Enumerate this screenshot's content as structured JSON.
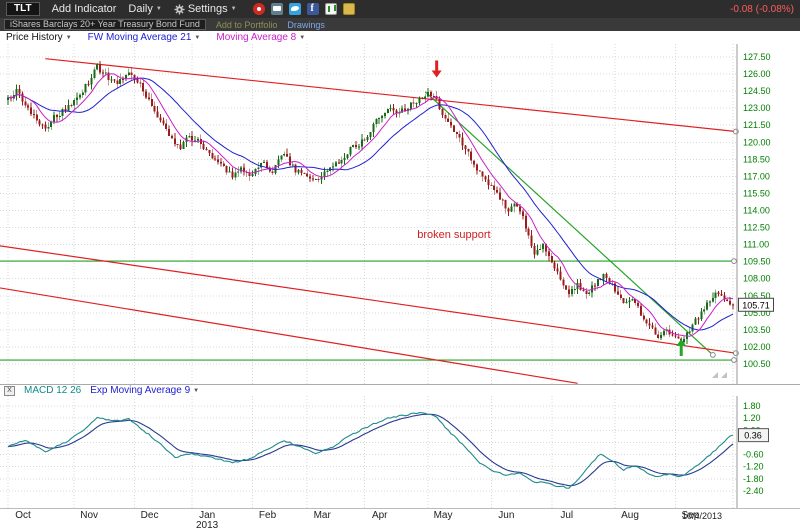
{
  "toolbar": {
    "symbol": "TLT",
    "add_indicator": "Add Indicator",
    "daily": "Daily",
    "settings": "Settings",
    "change": "-0.08 (-0.08%)"
  },
  "subbar": {
    "fund_name": "iShares Barclays 20+ Year Treasury Bond Fund",
    "add_to_portfolio": "Add to Portfolio",
    "drawings": "Drawings"
  },
  "chart_header": {
    "price_history": "Price History",
    "ma21_label": "FW Moving Average 21",
    "ma8_label": "Moving Average 8"
  },
  "macd_header": {
    "close_label": "X",
    "macd_label": "MACD 12 26",
    "signal_label": "Exp Moving Average 9"
  },
  "chart_data": {
    "type": "candlestick",
    "symbol": "TLT",
    "timeframe": "Daily",
    "last_price": 105.71,
    "price_badge": "105.71",
    "date_label": "10/4/2013",
    "year_label": "2013",
    "x_months": [
      "Oct",
      "Nov",
      "Dec",
      "Jan",
      "Feb",
      "Mar",
      "Apr",
      "May",
      "Jun",
      "Jul",
      "Aug",
      "Sep"
    ],
    "month_boundaries": [
      0,
      23,
      44,
      64,
      85,
      104,
      124,
      146,
      168,
      189,
      211,
      232,
      252
    ],
    "price_axis": {
      "min": 100.5,
      "max": 127.5,
      "step": 1.5,
      "labels": [
        "127.50",
        "126.00",
        "124.50",
        "123.00",
        "121.50",
        "120.00",
        "118.50",
        "117.00",
        "115.50",
        "114.00",
        "112.50",
        "111.00",
        "109.50",
        "108.00",
        "106.50",
        "105.00",
        "103.50",
        "102.00",
        "100.50"
      ]
    },
    "colors": {
      "up": "#186a18",
      "down": "#9b1c1c",
      "grid": "#d9d9d9",
      "axis_text": "#008000"
    },
    "price_waypoints": [
      [
        0,
        123.8
      ],
      [
        3,
        124.7
      ],
      [
        6,
        123.4
      ],
      [
        10,
        122.0
      ],
      [
        13,
        121.2
      ],
      [
        16,
        122.2
      ],
      [
        20,
        122.9
      ],
      [
        24,
        123.7
      ],
      [
        28,
        125.3
      ],
      [
        31,
        126.6
      ],
      [
        34,
        125.9
      ],
      [
        38,
        125.2
      ],
      [
        42,
        126.2
      ],
      [
        46,
        125.0
      ],
      [
        50,
        123.2
      ],
      [
        54,
        121.6
      ],
      [
        57,
        120.2
      ],
      [
        60,
        119.6
      ],
      [
        63,
        120.5
      ],
      [
        66,
        120.1
      ],
      [
        70,
        119.0
      ],
      [
        74,
        118.1
      ],
      [
        78,
        116.9
      ],
      [
        81,
        117.6
      ],
      [
        84,
        117.0
      ],
      [
        88,
        118.2
      ],
      [
        92,
        117.5
      ],
      [
        96,
        119.0
      ],
      [
        100,
        117.4
      ],
      [
        104,
        117.1
      ],
      [
        107,
        116.6
      ],
      [
        111,
        117.5
      ],
      [
        115,
        118.3
      ],
      [
        119,
        119.4
      ],
      [
        124,
        120.2
      ],
      [
        128,
        121.9
      ],
      [
        132,
        123.1
      ],
      [
        136,
        122.6
      ],
      [
        140,
        123.3
      ],
      [
        146,
        124.4
      ],
      [
        149,
        123.6
      ],
      [
        152,
        122.0
      ],
      [
        155,
        120.9
      ],
      [
        158,
        119.9
      ],
      [
        161,
        118.6
      ],
      [
        164,
        117.2
      ],
      [
        168,
        116.1
      ],
      [
        171,
        115.2
      ],
      [
        174,
        113.9
      ],
      [
        177,
        114.6
      ],
      [
        180,
        112.6
      ],
      [
        183,
        110.3
      ],
      [
        186,
        111.1
      ],
      [
        189,
        109.5
      ],
      [
        192,
        107.9
      ],
      [
        195,
        106.6
      ],
      [
        198,
        107.4
      ],
      [
        201,
        106.5
      ],
      [
        204,
        107.6
      ],
      [
        207,
        108.3
      ],
      [
        211,
        107.1
      ],
      [
        214,
        105.9
      ],
      [
        217,
        106.4
      ],
      [
        220,
        104.9
      ],
      [
        223,
        103.9
      ],
      [
        226,
        102.9
      ],
      [
        229,
        103.5
      ],
      [
        232,
        102.8
      ],
      [
        234,
        102.2
      ],
      [
        237,
        103.5
      ],
      [
        240,
        104.7
      ],
      [
        243,
        105.8
      ],
      [
        246,
        106.9
      ],
      [
        249,
        106.3
      ],
      [
        252,
        105.71
      ]
    ],
    "overlays": [
      {
        "name": "FW Moving Average 21",
        "period": 21,
        "color": "#2020d0"
      },
      {
        "name": "Moving Average 8",
        "period": 8,
        "color": "#c820c8"
      }
    ],
    "drawings": {
      "trend_lines": [
        {
          "name": "red-resistance-line",
          "color": "#e02020",
          "from": {
            "day": 13,
            "price": 127.35
          },
          "to": {
            "day": 253,
            "price": 120.95
          },
          "end_circle": true
        },
        {
          "name": "green-downtrend-line",
          "color": "#28a428",
          "from": {
            "day": 145,
            "price": 124.45
          },
          "to": {
            "day": 245,
            "price": 101.3
          },
          "end_circle": true
        },
        {
          "name": "red-channel-upper-line",
          "color": "#e02020",
          "from": {
            "day": -3,
            "price": 110.9
          },
          "to": {
            "day": 253,
            "price": 101.45
          },
          "end_circle": true
        },
        {
          "name": "red-channel-lower-line",
          "color": "#e02020",
          "from": {
            "day": -3,
            "price": 107.2
          },
          "to": {
            "day": 198,
            "price": 98.8
          },
          "end_circle": false
        }
      ],
      "horizontal_lines": [
        {
          "name": "support-line-upper",
          "color": "#28a428",
          "price": 109.55
        },
        {
          "name": "support-line-lower",
          "color": "#28a428",
          "price": 100.85
        }
      ],
      "arrows": [
        {
          "name": "down-arrow",
          "color": "#e02020",
          "direction": "down",
          "day": 149,
          "price_tip": 125.7
        },
        {
          "name": "up-arrow",
          "color": "#28a428",
          "direction": "up",
          "day": 234,
          "price_tip": 102.7
        }
      ],
      "labels": [
        {
          "text": "broken support",
          "color": "#cc2020",
          "day": 155,
          "price": 111.6
        }
      ]
    },
    "macd": {
      "label": "MACD 12 26",
      "signal_label": "Exp Moving Average 9",
      "axis": {
        "min": -2.4,
        "max": 1.8,
        "step": 0.6,
        "labels": [
          "1.80",
          "1.20",
          "0.60",
          "-0.60",
          "-1.20",
          "-1.80",
          "-2.40"
        ]
      },
      "last": 0.36,
      "badge": "0.36",
      "colors": {
        "macd": "#1f8a8a",
        "signal": "#2a3a90"
      },
      "waypoints": [
        [
          0,
          -0.2
        ],
        [
          6,
          0.1
        ],
        [
          13,
          -0.45
        ],
        [
          20,
          0.0
        ],
        [
          26,
          0.6
        ],
        [
          31,
          1.25
        ],
        [
          36,
          1.05
        ],
        [
          42,
          1.15
        ],
        [
          48,
          0.5
        ],
        [
          54,
          -0.2
        ],
        [
          58,
          -0.75
        ],
        [
          63,
          -0.55
        ],
        [
          70,
          -0.7
        ],
        [
          78,
          -1.0
        ],
        [
          84,
          -0.8
        ],
        [
          90,
          -0.35
        ],
        [
          96,
          0.1
        ],
        [
          102,
          -0.25
        ],
        [
          107,
          -0.55
        ],
        [
          113,
          -0.2
        ],
        [
          119,
          0.35
        ],
        [
          126,
          0.85
        ],
        [
          132,
          1.2
        ],
        [
          138,
          1.35
        ],
        [
          144,
          1.5
        ],
        [
          149,
          1.25
        ],
        [
          153,
          0.6
        ],
        [
          158,
          -0.1
        ],
        [
          163,
          -0.9
        ],
        [
          168,
          -1.4
        ],
        [
          173,
          -1.6
        ],
        [
          178,
          -1.5
        ],
        [
          183,
          -1.95
        ],
        [
          187,
          -2.0
        ],
        [
          191,
          -2.15
        ],
        [
          195,
          -2.25
        ],
        [
          199,
          -1.7
        ],
        [
          203,
          -1.0
        ],
        [
          206,
          -0.55
        ],
        [
          210,
          -0.9
        ],
        [
          214,
          -1.35
        ],
        [
          218,
          -1.15
        ],
        [
          222,
          -1.5
        ],
        [
          226,
          -1.7
        ],
        [
          230,
          -1.55
        ],
        [
          234,
          -1.7
        ],
        [
          238,
          -1.3
        ],
        [
          242,
          -0.85
        ],
        [
          246,
          -0.35
        ],
        [
          250,
          0.2
        ],
        [
          252,
          0.36
        ]
      ]
    }
  }
}
